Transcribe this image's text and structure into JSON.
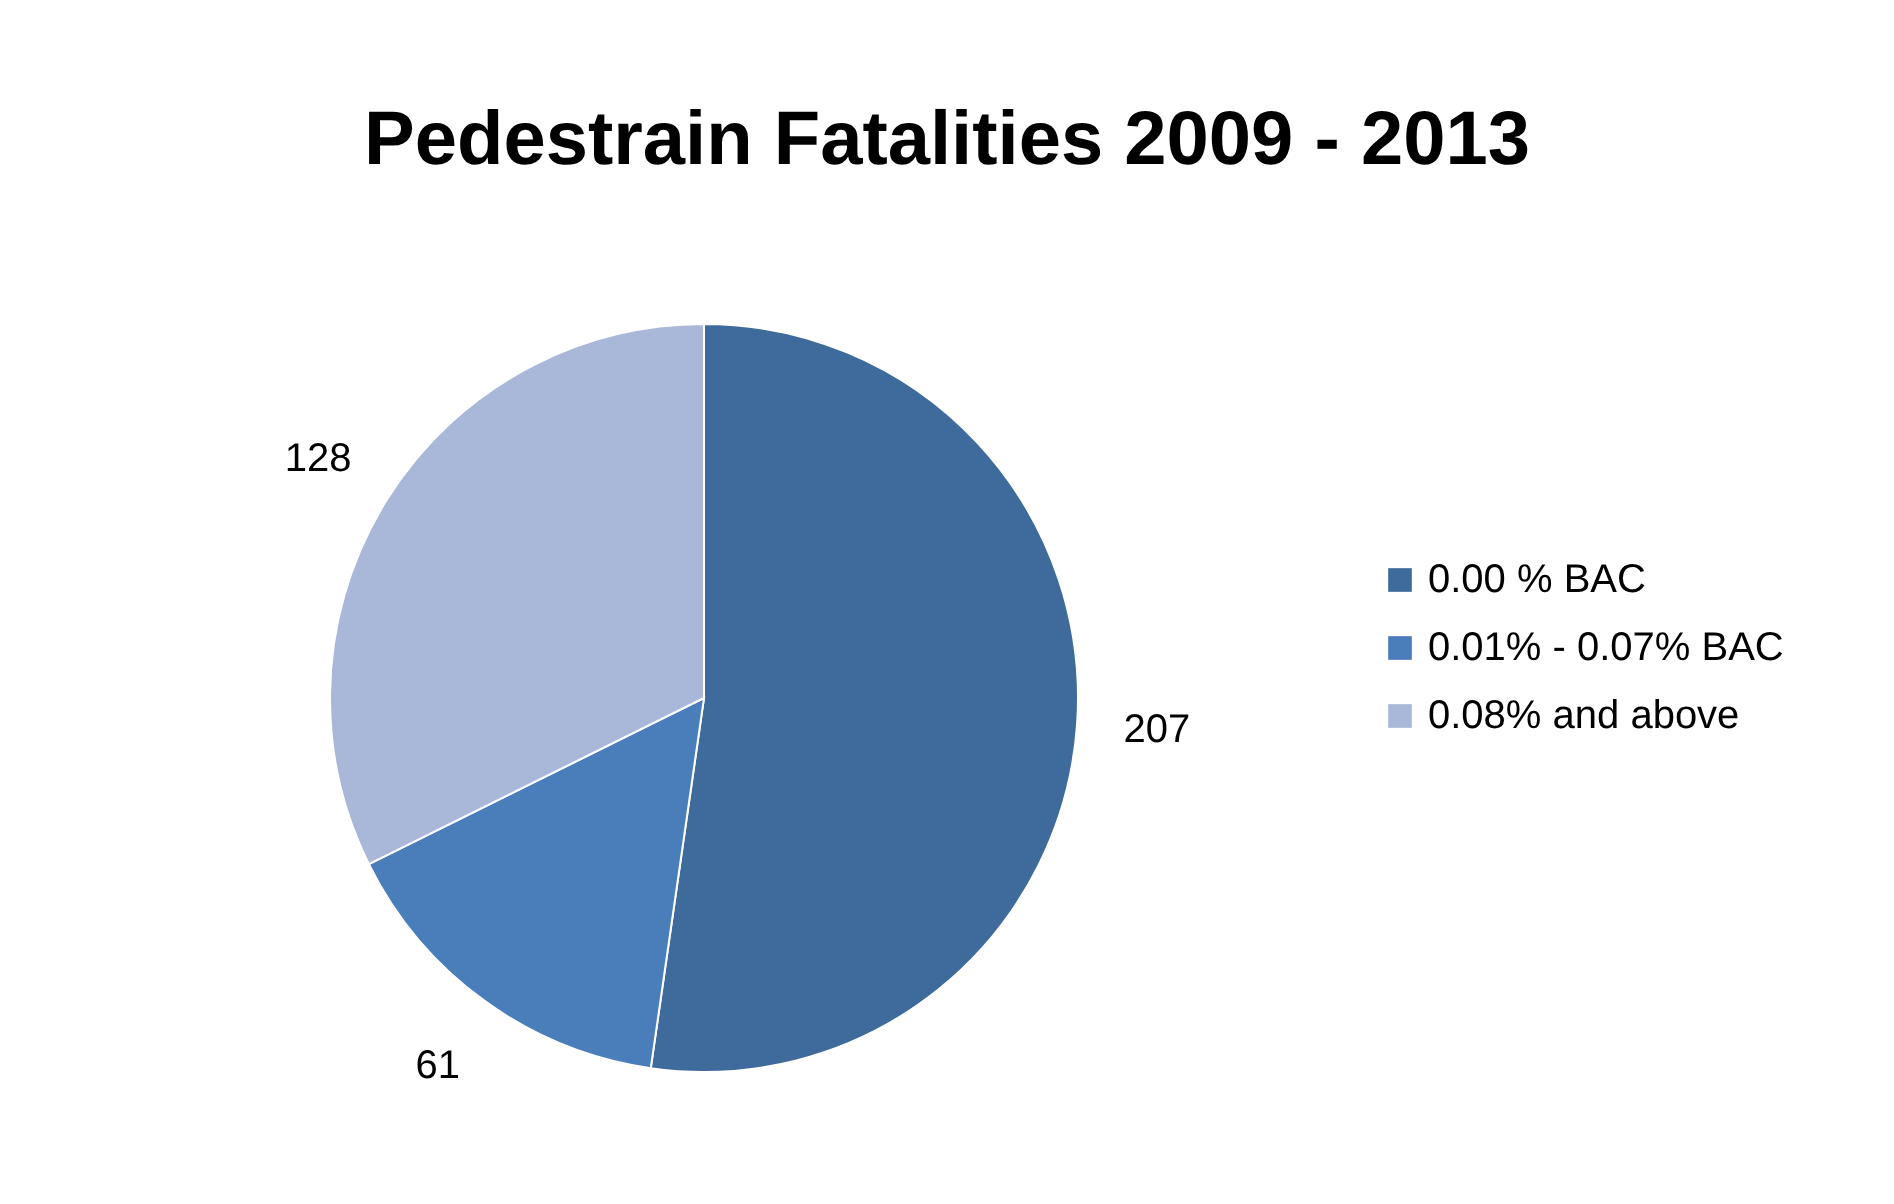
{
  "chart_data": {
    "type": "pie",
    "title": "Pedestrain Fatalities 2009 - 2013",
    "categories": [
      "0.00 % BAC",
      "0.01% - 0.07% BAC",
      "0.08% and above"
    ],
    "values": [
      207,
      61,
      128
    ],
    "colors": [
      "#3f6a9c",
      "#4a7ebb",
      "#a9b8d8"
    ],
    "data_labels": true,
    "legend": "right"
  }
}
